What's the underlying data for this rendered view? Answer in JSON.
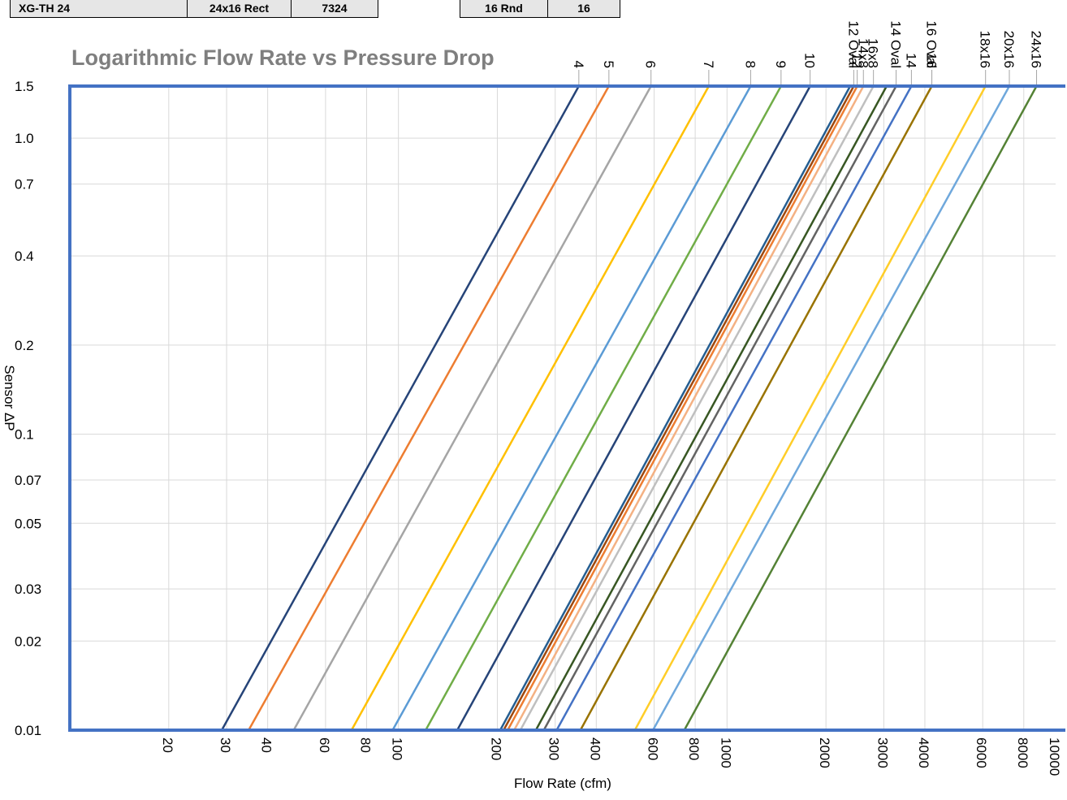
{
  "tables": {
    "left": {
      "model": "XG-TH 24",
      "size": "24x16 Rect",
      "number": "7324"
    },
    "right": {
      "size": "16 Rnd",
      "number": "16"
    }
  },
  "chart_data": {
    "type": "line",
    "title": "Logarithmic Flow Rate vs Pressure Drop",
    "xlabel": "Flow Rate (cfm)",
    "ylabel": "Sensor ΔP",
    "x_scale": "log",
    "y_scale": "log",
    "xlim": [
      10,
      10000
    ],
    "ylim": [
      0.01,
      1.5
    ],
    "x_ticks": [
      {
        "value": 20,
        "label": "20"
      },
      {
        "value": 30,
        "label": "30"
      },
      {
        "value": 40,
        "label": "40"
      },
      {
        "value": 60,
        "label": "60"
      },
      {
        "value": 80,
        "label": "80"
      },
      {
        "value": 100,
        "label": "100"
      },
      {
        "value": 200,
        "label": "200"
      },
      {
        "value": 300,
        "label": "300"
      },
      {
        "value": 400,
        "label": "400"
      },
      {
        "value": 600,
        "label": "600"
      },
      {
        "value": 800,
        "label": "800"
      },
      {
        "value": 1000,
        "label": "1000"
      },
      {
        "value": 2000,
        "label": "2000"
      },
      {
        "value": 3000,
        "label": "3000"
      },
      {
        "value": 4000,
        "label": "4000"
      },
      {
        "value": 6000,
        "label": "6000"
      },
      {
        "value": 8000,
        "label": "8000"
      },
      {
        "value": 10000,
        "label": "10000"
      }
    ],
    "y_ticks": [
      {
        "value": 0.01,
        "label": "0.01"
      },
      {
        "value": 0.02,
        "label": "0.02"
      },
      {
        "value": 0.03,
        "label": "0.03"
      },
      {
        "value": 0.05,
        "label": "0.05"
      },
      {
        "value": 0.07,
        "label": "0.07"
      },
      {
        "value": 0.1,
        "label": "0.1"
      },
      {
        "value": 0.2,
        "label": "0.2"
      },
      {
        "value": 0.4,
        "label": "0.4"
      },
      {
        "value": 0.7,
        "label": "0.7"
      },
      {
        "value": 1.0,
        "label": "1.0"
      },
      {
        "value": 1.5,
        "label": "1.5"
      }
    ],
    "grid": true,
    "axis_color": "#4472c4",
    "series": [
      {
        "name": "4",
        "color": "#264478",
        "x": [
          29,
          354
        ],
        "y": [
          0.01,
          1.5
        ]
      },
      {
        "name": "5",
        "color": "#ed7d31",
        "x": [
          35,
          437
        ],
        "y": [
          0.01,
          1.5
        ]
      },
      {
        "name": "6",
        "color": "#a5a5a5",
        "x": [
          48,
          587
        ],
        "y": [
          0.01,
          1.5
        ]
      },
      {
        "name": "7",
        "color": "#ffc000",
        "x": [
          72,
          880
        ],
        "y": [
          0.01,
          1.5
        ]
      },
      {
        "name": "8",
        "color": "#5b9bd5",
        "x": [
          96,
          1180
        ],
        "y": [
          0.01,
          1.5
        ]
      },
      {
        "name": "9",
        "color": "#70ad47",
        "x": [
          121,
          1460
        ],
        "y": [
          0.01,
          1.5
        ]
      },
      {
        "name": "10",
        "color": "#264478",
        "x": [
          151,
          1790
        ],
        "y": [
          0.01,
          1.5
        ]
      },
      {
        "name": "",
        "color": "#255e91",
        "x": [
          204,
          2370
        ],
        "y": [
          0.01,
          1.5
        ]
      },
      {
        "name": "12 Oval",
        "color": "#9e480e",
        "x": [
          209,
          2430
        ],
        "y": [
          0.01,
          1.5
        ]
      },
      {
        "name": "12",
        "color": "#ed7d31",
        "x": [
          215,
          2490
        ],
        "y": [
          0.01,
          1.5
        ]
      },
      {
        "name": "14x8",
        "color": "#f4b183",
        "x": [
          225,
          2600
        ],
        "y": [
          0.01,
          1.5
        ]
      },
      {
        "name": "16x8",
        "color": "#bfbfbf",
        "x": [
          235,
          2790
        ],
        "y": [
          0.01,
          1.5
        ]
      },
      {
        "name": "",
        "color": "#385723",
        "x": [
          262,
          3060
        ],
        "y": [
          0.01,
          1.5
        ]
      },
      {
        "name": "14 Oval",
        "color": "#636363",
        "x": [
          277,
          3270
        ],
        "y": [
          0.01,
          1.5
        ]
      },
      {
        "name": "14",
        "color": "#4472c4",
        "x": [
          303,
          3640
        ],
        "y": [
          0.01,
          1.5
        ]
      },
      {
        "name": "16 Oval",
        "color": "#997300",
        "x": [
          358,
          4200
        ],
        "y": [
          0.01,
          1.5
        ]
      },
      {
        "name": "16",
        "color": "#ffcd28",
        "x": [
          524,
          6120
        ],
        "y": [
          0.01,
          1.5
        ]
      },
      {
        "name": "18x16",
        "color": "#6fa8dc",
        "x": [
          595,
          7230
        ],
        "y": [
          0.01,
          1.5
        ]
      },
      {
        "name": "20x16",
        "color": "#548235",
        "x": [
          741,
          8750
        ],
        "y": [
          0.01,
          1.5
        ]
      }
    ],
    "top_labels": [
      {
        "text": "4",
        "x": 354
      },
      {
        "text": "5",
        "x": 437
      },
      {
        "text": "6",
        "x": 587
      },
      {
        "text": "7",
        "x": 880
      },
      {
        "text": "8",
        "x": 1180
      },
      {
        "text": "9",
        "x": 1460
      },
      {
        "text": "10",
        "x": 1790
      },
      {
        "text": "12 Oval",
        "x": 2430
      },
      {
        "text": "12",
        "x": 2490
      },
      {
        "text": "14x8",
        "x": 2600
      },
      {
        "text": "16x8",
        "x": 2790
      },
      {
        "text": "14 Oval",
        "x": 3270
      },
      {
        "text": "14",
        "x": 3640
      },
      {
        "text": "16 Oval",
        "x": 4200
      },
      {
        "text": "16",
        "x": 4200
      },
      {
        "text": "18x16",
        "x": 6120
      },
      {
        "text": "20x16",
        "x": 7230
      },
      {
        "text": "24x16",
        "x": 8750
      }
    ]
  }
}
